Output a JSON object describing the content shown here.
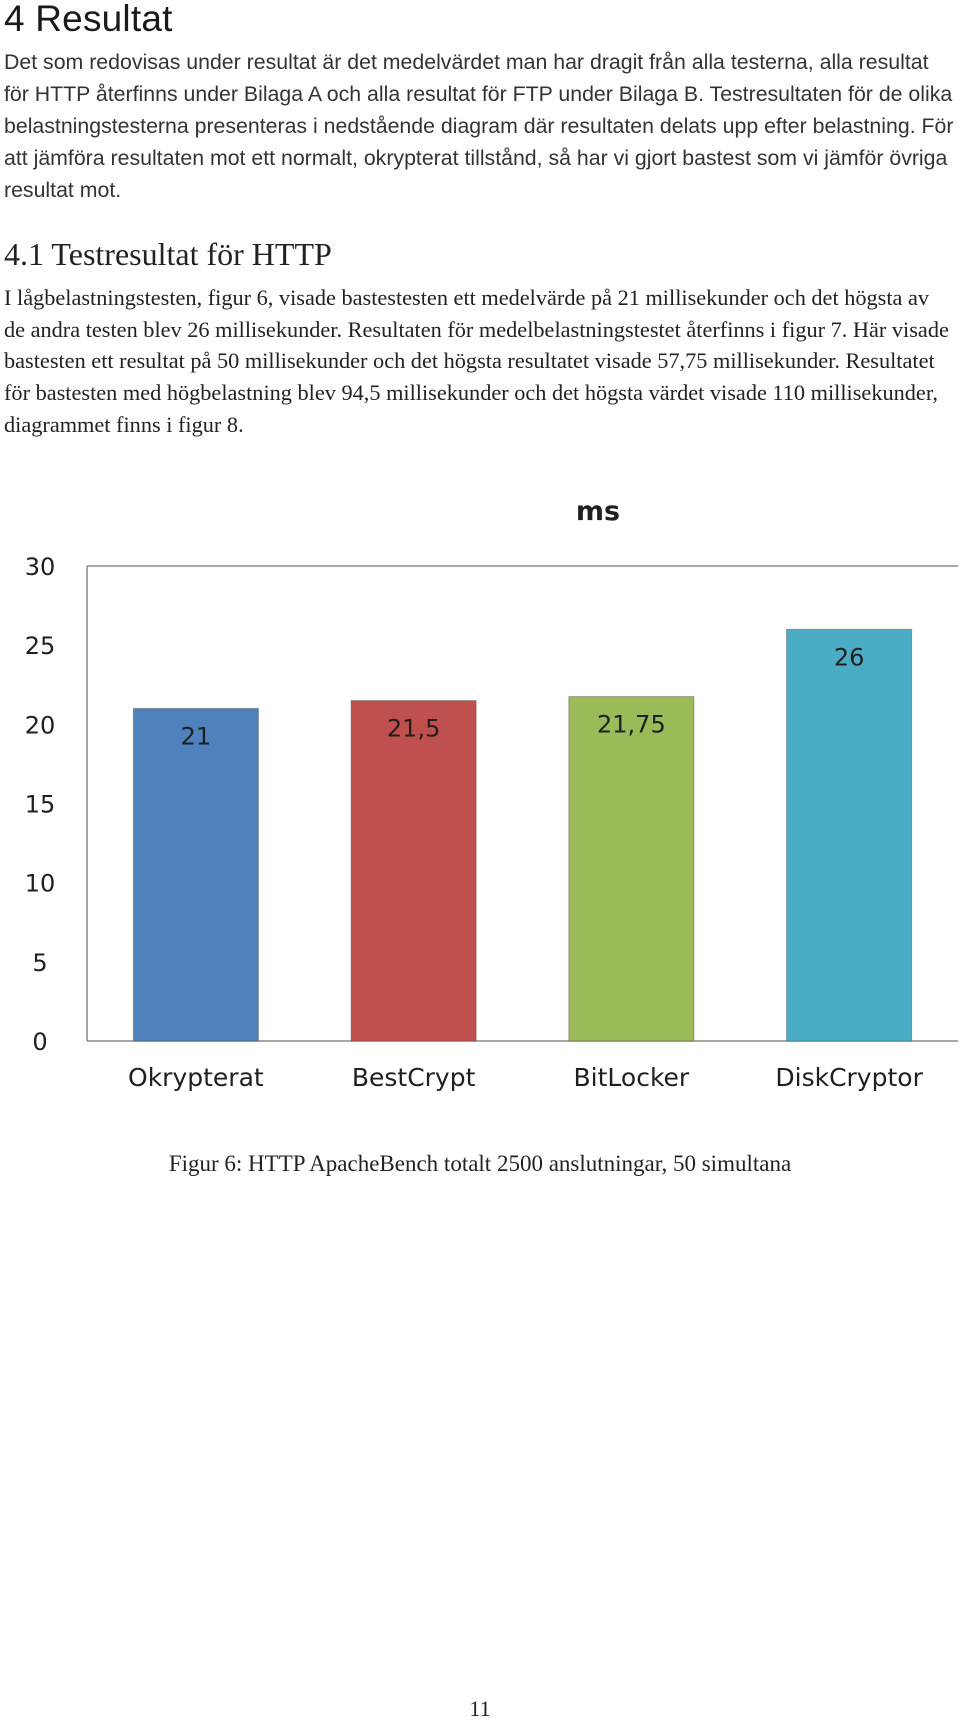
{
  "section": {
    "heading": "4 Resultat",
    "intro": "Det som redovisas under resultat är det medelvärdet man har dragit från alla testerna, alla resultat för HTTP återfinns under Bilaga A och alla resultat för FTP under Bilaga B. Testresultaten för de olika belastningstesterna presenteras i nedstående diagram där resultaten delats upp efter belastning. För att jämföra resultaten mot ett normalt, okrypterat tillstånd, så har vi gjort bastest som vi jämför övriga resultat mot."
  },
  "subsection": {
    "heading": "4.1 Testresultat för HTTP",
    "text": "I lågbelastningstesten, figur 6, visade bastestesten ett medelvärde på 21 millisekunder och det högsta av de andra testen blev 26 millisekunder. Resultaten för medelbelastningstestet återfinns i figur 7. Här visade bastesten ett resultat på 50 millisekunder och det högsta resultatet visade 57,75 millisekunder. Resultatet för bastesten med högbelastning blev 94,5 millisekunder och det högsta värdet visade 110 millisekunder, diagrammet finns i figur 8."
  },
  "chart_data": {
    "type": "bar",
    "title": "ms",
    "categories": [
      "Okrypterat",
      "BestCrypt",
      "BitLocker",
      "DiskCryptor"
    ],
    "values": [
      21,
      21.5,
      21.75,
      26
    ],
    "data_labels": [
      "21",
      "21,5",
      "21,75",
      "26"
    ],
    "colors": [
      "#4f81bd",
      "#c0504d",
      "#9bbb59",
      "#4bacc6"
    ],
    "ylim": [
      0,
      30
    ],
    "yticks": [
      0,
      5,
      10,
      15,
      20,
      25,
      30
    ],
    "grid": false,
    "legend": "none"
  },
  "figure": {
    "caption": "Figur 6: HTTP ApacheBench totalt 2500 anslutningar, 50 simultana"
  },
  "page": {
    "number": "11"
  }
}
